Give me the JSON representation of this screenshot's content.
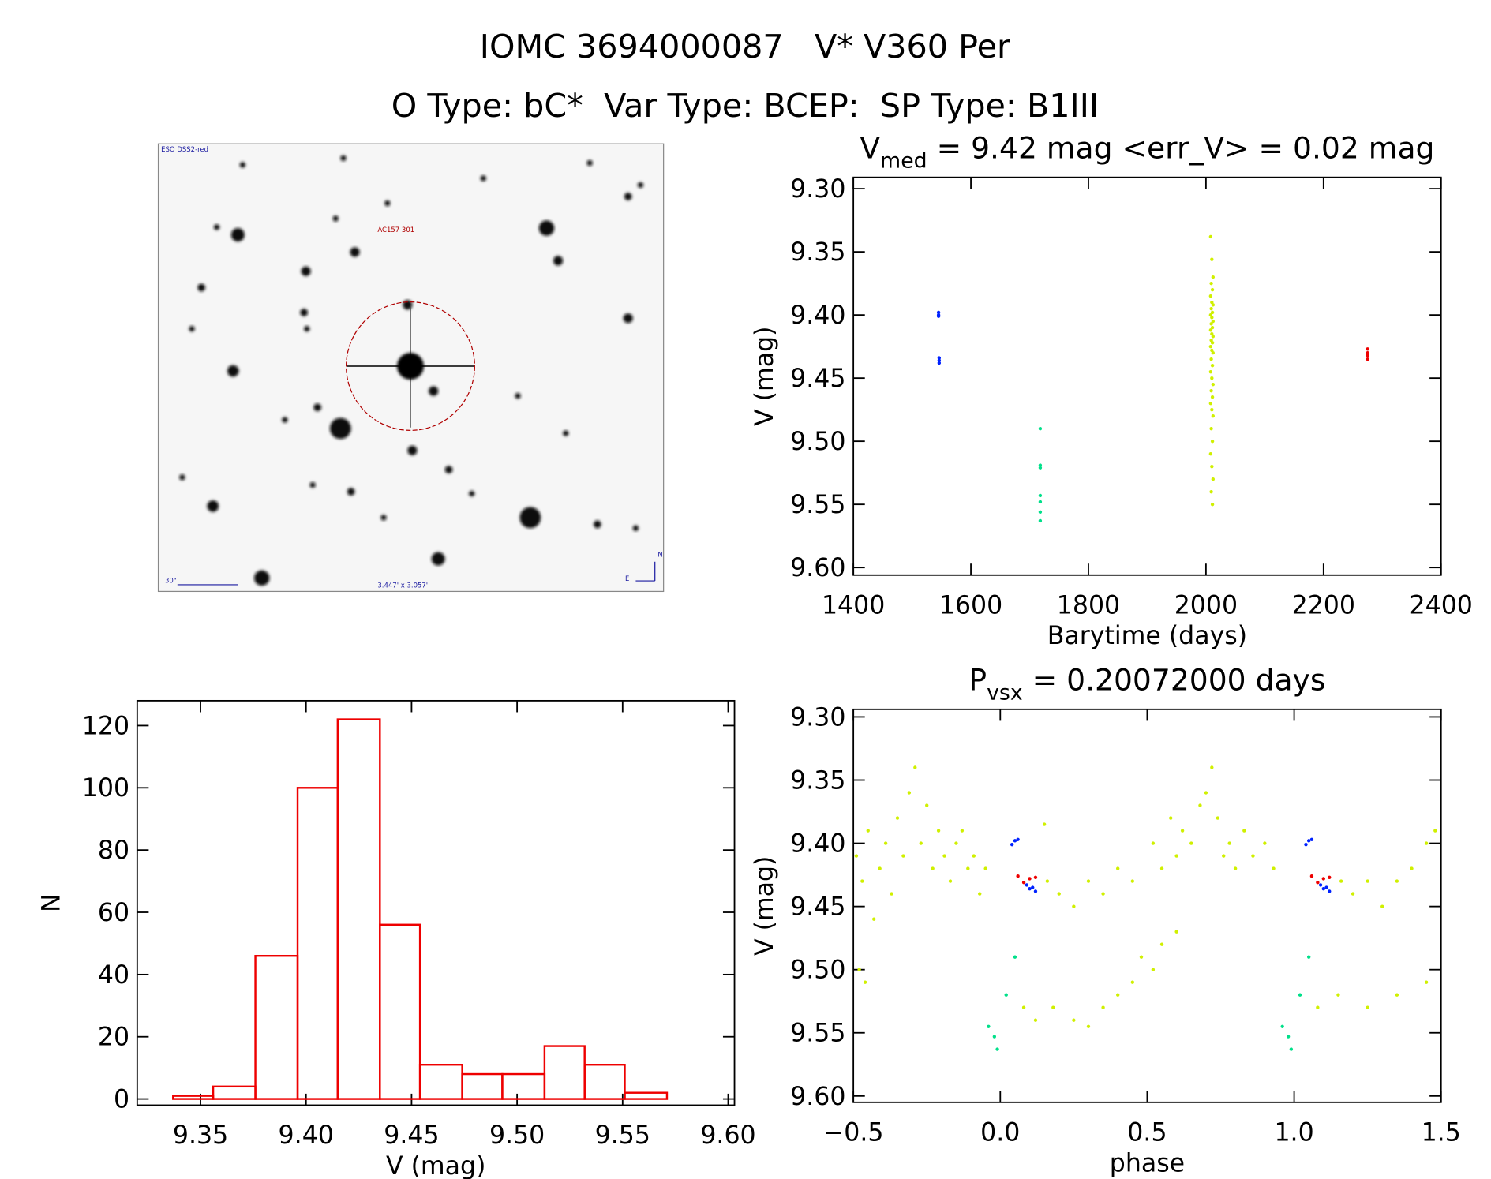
{
  "header": {
    "line1": "IOMC 3694000087   V* V360 Per",
    "line2": "O Type: bC*  Var Type: BCEP:  SP Type: B1III"
  },
  "image": {
    "survey": "ESO DSS2-red",
    "target": "AC157 301",
    "scale": "30\"",
    "size": "3.447' x 3.057'",
    "north": "N",
    "east": "E"
  },
  "chart_data": [
    {
      "type": "scatter",
      "title_parts": [
        "V",
        "med",
        " = 9.42 mag <err_V> = 0.02 mag"
      ],
      "x_label": "Barytime (days)",
      "y_label": "V (mag)",
      "xlim": [
        1400,
        2400
      ],
      "xticks": [
        1400,
        1600,
        1800,
        2000,
        2200,
        2400
      ],
      "ylim": [
        9.606,
        9.291
      ],
      "yticks": [
        {
          "value": 9.3,
          "label": "9.30"
        },
        {
          "value": 9.35,
          "label": "9.35"
        },
        {
          "value": 9.4,
          "label": "9.40"
        },
        {
          "value": 9.45,
          "label": "9.45"
        },
        {
          "value": 9.5,
          "label": "9.50"
        },
        {
          "value": 9.55,
          "label": "9.55"
        },
        {
          "value": 9.6,
          "label": "9.60"
        }
      ],
      "series": [
        {
          "color": "#0022ff",
          "x": [
            1545,
            1545,
            1545,
            1546,
            1546,
            1546
          ],
          "values": [
            9.398,
            9.4,
            9.401,
            9.434,
            9.436,
            9.438
          ]
        },
        {
          "color": "#00e08a",
          "x": [
            1718,
            1718,
            1718,
            1718,
            1718,
            1718,
            1718
          ],
          "values": [
            9.49,
            9.519,
            9.521,
            9.543,
            9.548,
            9.556,
            9.563
          ]
        },
        {
          "color": "#d0f000",
          "x": [
            2008,
            2010,
            2012,
            2009,
            2011,
            2008,
            2010,
            2012,
            2009,
            2011,
            2008,
            2010,
            2012,
            2009,
            2011,
            2008,
            2010,
            2012,
            2009,
            2011,
            2008,
            2010,
            2012,
            2009,
            2011,
            2008,
            2010,
            2012,
            2009,
            2011,
            2008,
            2010,
            2012,
            2009,
            2011,
            2008,
            2010,
            2012,
            2009,
            2011
          ],
          "values": [
            9.338,
            9.356,
            9.37,
            9.375,
            9.38,
            9.385,
            9.39,
            9.392,
            9.395,
            9.398,
            9.4,
            9.402,
            9.405,
            9.407,
            9.41,
            9.412,
            9.415,
            9.417,
            9.42,
            9.422,
            9.425,
            9.428,
            9.43,
            9.435,
            9.44,
            9.445,
            9.45,
            9.455,
            9.46,
            9.465,
            9.47,
            9.475,
            9.48,
            9.49,
            9.5,
            9.51,
            9.52,
            9.53,
            9.54,
            9.55
          ]
        },
        {
          "color": "#ee0000",
          "x": [
            2275,
            2275,
            2275,
            2275
          ],
          "values": [
            9.427,
            9.43,
            9.432,
            9.435
          ]
        }
      ]
    },
    {
      "type": "histogram",
      "x_label": "V (mag)",
      "y_label": "N",
      "color": "#ee0000",
      "bins": [
        9.337,
        9.356,
        9.376,
        9.396,
        9.415,
        9.435,
        9.454,
        9.474,
        9.493,
        9.513,
        9.532,
        9.551,
        9.571
      ],
      "values": [
        1,
        4,
        46,
        100,
        122,
        56,
        11,
        8,
        8,
        17,
        11,
        2
      ],
      "xlim": [
        9.32,
        9.603
      ],
      "xticks": [
        9.35,
        {
          "value": 9.4,
          "label": "9.40"
        },
        9.45,
        {
          "value": 9.5,
          "label": "9.50"
        },
        9.55,
        {
          "value": 9.6,
          "label": "9.60"
        }
      ],
      "ylim": [
        -2,
        128
      ],
      "yticks": [
        0,
        20,
        40,
        60,
        80,
        100,
        120
      ]
    },
    {
      "type": "scatter",
      "title_parts": [
        "P",
        "vsx",
        " = 0.20072000 days"
      ],
      "x_label": "phase",
      "y_label": "V (mag)",
      "xlim": [
        -0.5,
        1.5
      ],
      "xticks": [
        {
          "value": -0.5,
          "label": "−0.5"
        },
        {
          "value": 0,
          "label": "0.0"
        },
        {
          "value": 0.5,
          "label": "0.5"
        },
        {
          "value": 1,
          "label": "1.0"
        },
        {
          "value": 1.5,
          "label": "1.5"
        }
      ],
      "ylim": [
        9.605,
        9.294
      ],
      "yticks": [
        {
          "value": 9.3,
          "label": "9.30"
        },
        {
          "value": 9.35,
          "label": "9.35"
        },
        {
          "value": 9.4,
          "label": "9.40"
        },
        {
          "value": 9.45,
          "label": "9.45"
        },
        {
          "value": 9.5,
          "label": "9.50"
        },
        {
          "value": 9.55,
          "label": "9.55"
        },
        {
          "value": 9.6,
          "label": "9.60"
        }
      ],
      "series": [
        {
          "color": "#d0f000",
          "x": [
            -0.49,
            -0.47,
            -0.45,
            -0.43,
            -0.41,
            -0.39,
            -0.37,
            -0.35,
            -0.33,
            -0.31,
            -0.29,
            -0.27,
            -0.25,
            -0.23,
            -0.21,
            -0.19,
            -0.17,
            -0.15,
            -0.13,
            -0.11,
            -0.09,
            -0.07,
            -0.05,
            0.16,
            0.2,
            0.25,
            0.3,
            0.35,
            0.4,
            0.45,
            0.08,
            0.12,
            0.18,
            0.25,
            0.3,
            0.35,
            0.4,
            0.45,
            0.48,
            0.15,
            0.52,
            0.55,
            0.58,
            0.6,
            0.62,
            0.65,
            0.68,
            0.7,
            0.72,
            0.74,
            0.76,
            0.78,
            0.8,
            0.83,
            0.86,
            0.9,
            0.93,
            1.16,
            1.2,
            1.25,
            1.3,
            1.35,
            1.4,
            1.45,
            1.48,
            1.08,
            1.15,
            1.25,
            1.35,
            1.45,
            0.55,
            0.6,
            0.52,
            -0.48,
            -0.46
          ],
          "values": [
            9.41,
            9.43,
            9.39,
            9.46,
            9.42,
            9.4,
            9.44,
            9.38,
            9.41,
            9.36,
            9.34,
            9.4,
            9.37,
            9.42,
            9.39,
            9.41,
            9.43,
            9.4,
            9.39,
            9.42,
            9.41,
            9.44,
            9.42,
            9.43,
            9.44,
            9.45,
            9.43,
            9.44,
            9.42,
            9.43,
            9.53,
            9.54,
            9.53,
            9.54,
            9.545,
            9.53,
            9.52,
            9.51,
            9.49,
            9.385,
            9.4,
            9.42,
            9.38,
            9.41,
            9.39,
            9.4,
            9.37,
            9.36,
            9.34,
            9.38,
            9.41,
            9.4,
            9.42,
            9.39,
            9.41,
            9.4,
            9.42,
            9.43,
            9.44,
            9.43,
            9.45,
            9.43,
            9.42,
            9.4,
            9.39,
            9.53,
            9.52,
            9.53,
            9.52,
            9.51,
            9.48,
            9.47,
            9.5,
            9.5,
            9.51
          ]
        },
        {
          "color": "#0022ff",
          "x": [
            0.04,
            0.05,
            0.06,
            0.09,
            0.1,
            0.11,
            0.12,
            1.04,
            1.05,
            1.06,
            1.09,
            1.1,
            1.11,
            1.12
          ],
          "values": [
            9.401,
            9.398,
            9.397,
            9.433,
            9.436,
            9.435,
            9.438,
            9.401,
            9.398,
            9.397,
            9.433,
            9.436,
            9.435,
            9.438
          ]
        },
        {
          "color": "#ee0000",
          "x": [
            0.06,
            0.08,
            0.1,
            0.12,
            1.06,
            1.08,
            1.1,
            1.12
          ],
          "values": [
            9.426,
            9.431,
            9.428,
            9.427,
            9.426,
            9.431,
            9.428,
            9.427
          ]
        },
        {
          "color": "#00e08a",
          "x": [
            -0.04,
            -0.02,
            -0.01,
            0.02,
            0.05,
            0.96,
            0.98,
            0.99,
            1.02,
            1.05
          ],
          "values": [
            9.545,
            9.553,
            9.563,
            9.52,
            9.49,
            9.545,
            9.553,
            9.563,
            9.52,
            9.49
          ]
        }
      ]
    }
  ]
}
